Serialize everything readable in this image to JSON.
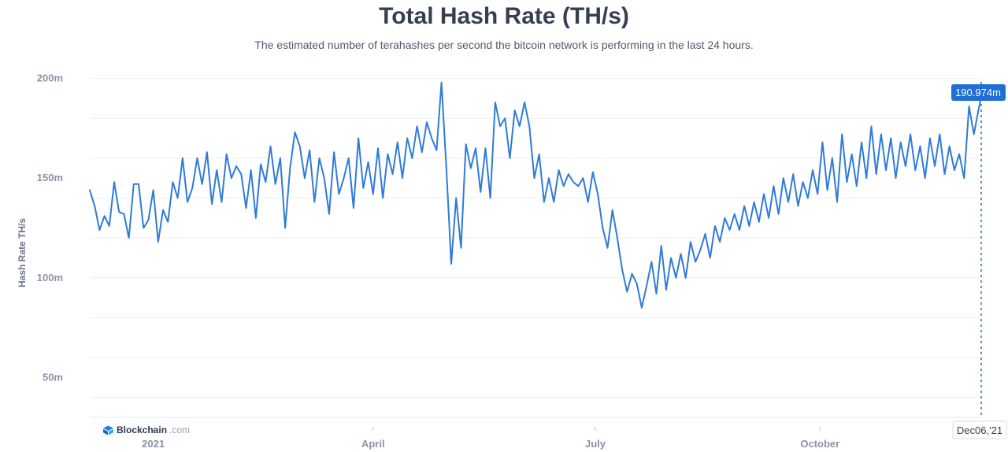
{
  "header": {
    "title": "Total Hash Rate (TH/s)",
    "subtitle": "The estimated number of terahashes per second the bitcoin network is performing in the last 24 hours."
  },
  "brand": {
    "name": "Blockchain",
    "suffix": ".com",
    "icon": "blockchain-cube-icon"
  },
  "tooltip": {
    "value": "190.974m",
    "date": "Dec06,'21"
  },
  "colors": {
    "line": "#2f7bd8",
    "tooltip_bg": "#1f6fd6",
    "grid": "#eceff4",
    "axis_text": "#8a93a6"
  },
  "chart_data": {
    "type": "line",
    "ylabel": "Hash Rate TH/s",
    "xlabel": "",
    "ylim": [
      30,
      203
    ],
    "yticks": [
      50,
      100,
      150,
      200
    ],
    "ytick_labels": [
      "50m",
      "100m",
      "150m",
      "200m"
    ],
    "grid": true,
    "x_start": "2020-12-06",
    "x_end": "2021-12-06",
    "xticks": [
      {
        "label": "2021",
        "date": "2021-01-01"
      },
      {
        "label": "April",
        "date": "2021-04-01"
      },
      {
        "label": "July",
        "date": "2021-07-01"
      },
      {
        "label": "October",
        "date": "2021-10-01"
      }
    ],
    "series": [
      {
        "name": "",
        "points": [
          [
            "2020-12-06",
            144
          ],
          [
            "2020-12-08",
            136
          ],
          [
            "2020-12-10",
            124
          ],
          [
            "2020-12-12",
            131
          ],
          [
            "2020-12-14",
            126
          ],
          [
            "2020-12-16",
            148
          ],
          [
            "2020-12-18",
            133
          ],
          [
            "2020-12-20",
            132
          ],
          [
            "2020-12-22",
            120
          ],
          [
            "2020-12-24",
            147
          ],
          [
            "2020-12-26",
            147
          ],
          [
            "2020-12-28",
            125
          ],
          [
            "2020-12-30",
            129
          ],
          [
            "2021-01-01",
            144
          ],
          [
            "2021-01-03",
            118
          ],
          [
            "2021-01-05",
            134
          ],
          [
            "2021-01-07",
            128
          ],
          [
            "2021-01-09",
            148
          ],
          [
            "2021-01-11",
            140
          ],
          [
            "2021-01-13",
            160
          ],
          [
            "2021-01-15",
            138
          ],
          [
            "2021-01-17",
            145
          ],
          [
            "2021-01-19",
            160
          ],
          [
            "2021-01-21",
            147
          ],
          [
            "2021-01-23",
            163
          ],
          [
            "2021-01-25",
            137
          ],
          [
            "2021-01-27",
            154
          ],
          [
            "2021-01-29",
            138
          ],
          [
            "2021-01-31",
            162
          ],
          [
            "2021-02-02",
            150
          ],
          [
            "2021-02-04",
            156
          ],
          [
            "2021-02-06",
            152
          ],
          [
            "2021-02-08",
            135
          ],
          [
            "2021-02-10",
            154
          ],
          [
            "2021-02-12",
            130
          ],
          [
            "2021-02-14",
            157
          ],
          [
            "2021-02-16",
            148
          ],
          [
            "2021-02-18",
            166
          ],
          [
            "2021-02-20",
            147
          ],
          [
            "2021-02-22",
            160
          ],
          [
            "2021-02-24",
            125
          ],
          [
            "2021-02-26",
            155
          ],
          [
            "2021-02-28",
            173
          ],
          [
            "2021-03-02",
            166
          ],
          [
            "2021-03-04",
            150
          ],
          [
            "2021-03-06",
            164
          ],
          [
            "2021-03-08",
            138
          ],
          [
            "2021-03-10",
            160
          ],
          [
            "2021-03-12",
            150
          ],
          [
            "2021-03-14",
            132
          ],
          [
            "2021-03-16",
            163
          ],
          [
            "2021-03-18",
            142
          ],
          [
            "2021-03-20",
            150
          ],
          [
            "2021-03-22",
            160
          ],
          [
            "2021-03-24",
            135
          ],
          [
            "2021-03-26",
            170
          ],
          [
            "2021-03-28",
            145
          ],
          [
            "2021-03-30",
            158
          ],
          [
            "2021-04-01",
            142
          ],
          [
            "2021-04-03",
            165
          ],
          [
            "2021-04-05",
            140
          ],
          [
            "2021-04-07",
            162
          ],
          [
            "2021-04-09",
            152
          ],
          [
            "2021-04-11",
            168
          ],
          [
            "2021-04-13",
            150
          ],
          [
            "2021-04-15",
            170
          ],
          [
            "2021-04-17",
            160
          ],
          [
            "2021-04-19",
            176
          ],
          [
            "2021-04-21",
            163
          ],
          [
            "2021-04-23",
            178
          ],
          [
            "2021-04-25",
            170
          ],
          [
            "2021-04-27",
            164
          ],
          [
            "2021-04-29",
            198
          ],
          [
            "2021-05-01",
            155
          ],
          [
            "2021-05-03",
            107
          ],
          [
            "2021-05-05",
            140
          ],
          [
            "2021-05-07",
            115
          ],
          [
            "2021-05-09",
            167
          ],
          [
            "2021-05-11",
            155
          ],
          [
            "2021-05-13",
            165
          ],
          [
            "2021-05-15",
            143
          ],
          [
            "2021-05-17",
            165
          ],
          [
            "2021-05-19",
            140
          ],
          [
            "2021-05-21",
            188
          ],
          [
            "2021-05-23",
            176
          ],
          [
            "2021-05-25",
            180
          ],
          [
            "2021-05-27",
            160
          ],
          [
            "2021-05-29",
            184
          ],
          [
            "2021-05-31",
            176
          ],
          [
            "2021-06-02",
            188
          ],
          [
            "2021-06-04",
            176
          ],
          [
            "2021-06-06",
            150
          ],
          [
            "2021-06-08",
            162
          ],
          [
            "2021-06-10",
            138
          ],
          [
            "2021-06-12",
            150
          ],
          [
            "2021-06-14",
            138
          ],
          [
            "2021-06-16",
            154
          ],
          [
            "2021-06-18",
            146
          ],
          [
            "2021-06-20",
            152
          ],
          [
            "2021-06-22",
            148
          ],
          [
            "2021-06-24",
            146
          ],
          [
            "2021-06-26",
            150
          ],
          [
            "2021-06-28",
            138
          ],
          [
            "2021-06-30",
            153
          ],
          [
            "2021-07-02",
            142
          ],
          [
            "2021-07-04",
            125
          ],
          [
            "2021-07-06",
            115
          ],
          [
            "2021-07-08",
            134
          ],
          [
            "2021-07-10",
            120
          ],
          [
            "2021-07-12",
            104
          ],
          [
            "2021-07-14",
            93
          ],
          [
            "2021-07-16",
            102
          ],
          [
            "2021-07-18",
            97
          ],
          [
            "2021-07-20",
            85
          ],
          [
            "2021-07-22",
            96
          ],
          [
            "2021-07-24",
            108
          ],
          [
            "2021-07-26",
            92
          ],
          [
            "2021-07-28",
            116
          ],
          [
            "2021-07-30",
            94
          ],
          [
            "2021-08-01",
            110
          ],
          [
            "2021-08-03",
            100
          ],
          [
            "2021-08-05",
            112
          ],
          [
            "2021-08-07",
            100
          ],
          [
            "2021-08-09",
            118
          ],
          [
            "2021-08-11",
            108
          ],
          [
            "2021-08-13",
            114
          ],
          [
            "2021-08-15",
            122
          ],
          [
            "2021-08-17",
            110
          ],
          [
            "2021-08-19",
            126
          ],
          [
            "2021-08-21",
            118
          ],
          [
            "2021-08-23",
            130
          ],
          [
            "2021-08-25",
            124
          ],
          [
            "2021-08-27",
            132
          ],
          [
            "2021-08-29",
            124
          ],
          [
            "2021-08-31",
            136
          ],
          [
            "2021-09-02",
            126
          ],
          [
            "2021-09-04",
            138
          ],
          [
            "2021-09-06",
            128
          ],
          [
            "2021-09-08",
            142
          ],
          [
            "2021-09-10",
            130
          ],
          [
            "2021-09-12",
            146
          ],
          [
            "2021-09-14",
            132
          ],
          [
            "2021-09-16",
            150
          ],
          [
            "2021-09-18",
            138
          ],
          [
            "2021-09-20",
            152
          ],
          [
            "2021-09-22",
            136
          ],
          [
            "2021-09-24",
            148
          ],
          [
            "2021-09-26",
            140
          ],
          [
            "2021-09-28",
            154
          ],
          [
            "2021-09-30",
            142
          ],
          [
            "2021-10-02",
            168
          ],
          [
            "2021-10-04",
            144
          ],
          [
            "2021-10-06",
            160
          ],
          [
            "2021-10-08",
            138
          ],
          [
            "2021-10-10",
            172
          ],
          [
            "2021-10-12",
            148
          ],
          [
            "2021-10-14",
            162
          ],
          [
            "2021-10-16",
            146
          ],
          [
            "2021-10-18",
            168
          ],
          [
            "2021-10-20",
            150
          ],
          [
            "2021-10-22",
            176
          ],
          [
            "2021-10-24",
            152
          ],
          [
            "2021-10-26",
            172
          ],
          [
            "2021-10-28",
            154
          ],
          [
            "2021-10-30",
            170
          ],
          [
            "2021-11-01",
            150
          ],
          [
            "2021-11-03",
            168
          ],
          [
            "2021-11-05",
            156
          ],
          [
            "2021-11-07",
            172
          ],
          [
            "2021-11-09",
            154
          ],
          [
            "2021-11-11",
            166
          ],
          [
            "2021-11-13",
            150
          ],
          [
            "2021-11-15",
            170
          ],
          [
            "2021-11-17",
            156
          ],
          [
            "2021-11-19",
            172
          ],
          [
            "2021-11-21",
            152
          ],
          [
            "2021-11-23",
            166
          ],
          [
            "2021-11-25",
            154
          ],
          [
            "2021-11-27",
            162
          ],
          [
            "2021-11-29",
            150
          ],
          [
            "2021-12-01",
            186
          ],
          [
            "2021-12-03",
            172
          ],
          [
            "2021-12-05",
            185
          ],
          [
            "2021-12-06",
            190.974
          ]
        ]
      }
    ]
  }
}
